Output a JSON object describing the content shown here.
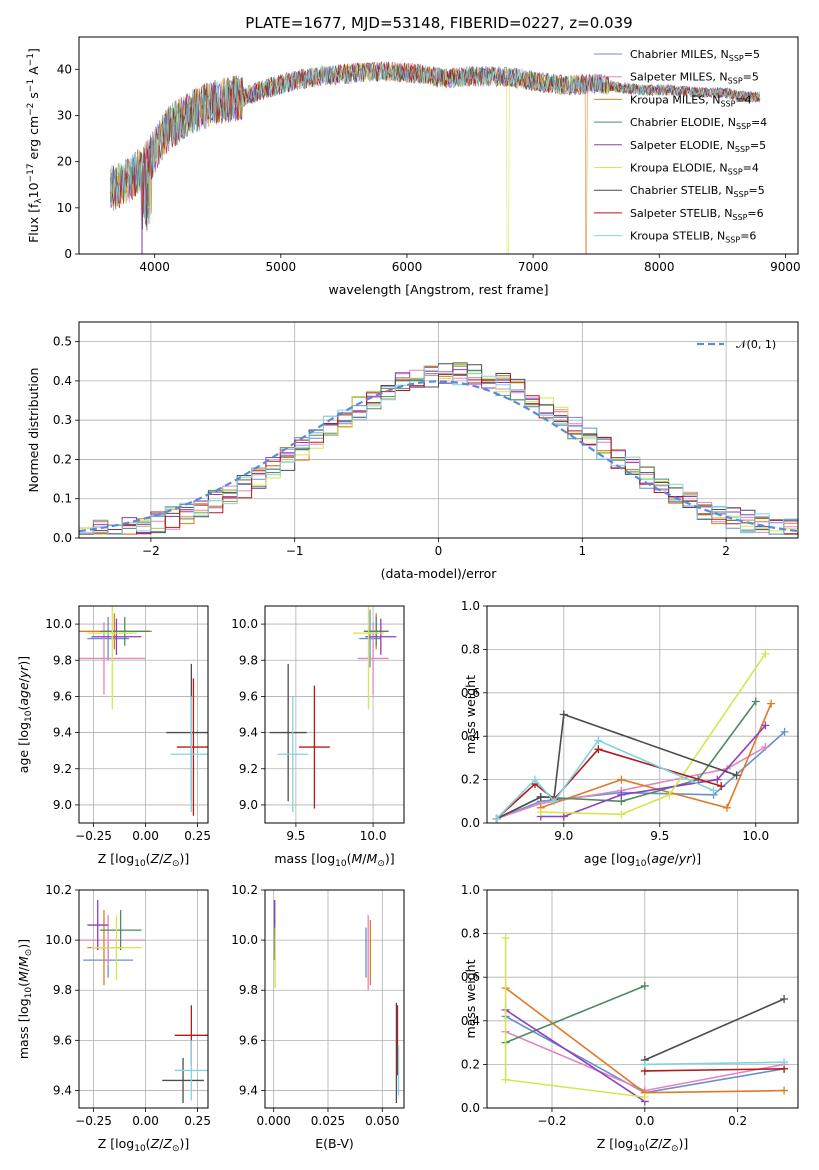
{
  "figure_title": "PLATE=1677, MJD=53148, FIBERID=0227, z=0.039",
  "models": [
    {
      "name": "Chabrier MILES",
      "nssp": 5,
      "color": "#6a8fd0"
    },
    {
      "name": "Salpeter MILES",
      "nssp": 5,
      "color": "#e386c0"
    },
    {
      "name": "Kroupa MILES",
      "nssp": 4,
      "color": "#e07b24"
    },
    {
      "name": "Chabrier ELODIE",
      "nssp": 4,
      "color": "#4f8a63"
    },
    {
      "name": "Salpeter ELODIE",
      "nssp": 5,
      "color": "#8e3fbf"
    },
    {
      "name": "Kroupa ELODIE",
      "nssp": 4,
      "color": "#d6e64e"
    },
    {
      "name": "Chabrier STELIB",
      "nssp": 5,
      "color": "#4c4c4c"
    },
    {
      "name": "Salpeter STELIB",
      "nssp": 6,
      "color": "#b31b1b"
    },
    {
      "name": "Kroupa STELIB",
      "nssp": 6,
      "color": "#7fd4e0"
    }
  ],
  "legend_nssp_label": "N",
  "legend_nssp_sub": "SSP",
  "normal_label": "𝒩(0, 1)",
  "chart_data": [
    {
      "id": "spectrum",
      "type": "line",
      "xlabel": "wavelength [Angstrom, rest frame]",
      "ylabel": "Flux [f",
      "ylabel_tail": "10",
      "xlim": [
        3400,
        9100
      ],
      "ylim": [
        0,
        47
      ],
      "xticks": [
        4000,
        5000,
        6000,
        7000,
        8000,
        9000
      ],
      "yticks": [
        0,
        10,
        20,
        30,
        40
      ],
      "legend": "top-right",
      "continuum": {
        "x": [
          3650,
          3800,
          3950,
          4100,
          4300,
          4500,
          4700,
          4900,
          5100,
          5300,
          5500,
          5700,
          5900,
          6100,
          6300,
          6500,
          6700,
          6900,
          7100,
          7300,
          7500,
          7700,
          7900,
          8100,
          8300,
          8500,
          8700,
          8800
        ],
        "y": [
          14,
          16,
          20,
          27,
          31,
          33,
          34,
          36,
          37.5,
          38.5,
          39,
          39.5,
          39.5,
          39,
          38,
          38.5,
          38.5,
          38,
          37,
          36.5,
          37,
          36,
          35.5,
          35.5,
          35,
          35,
          34,
          34
        ]
      },
      "dropouts": [
        {
          "model": "Salpeter ELODIE",
          "x": 3900
        },
        {
          "model": "Kroupa ELODIE",
          "x": 6800
        },
        {
          "model": "Kroupa MILES",
          "x": 7420
        }
      ]
    },
    {
      "id": "residuals",
      "type": "step",
      "xlabel": "(data-model)/error",
      "ylabel": "Normed distribution",
      "xlim": [
        -2.5,
        2.5
      ],
      "ylim": [
        0,
        0.55
      ],
      "xticks": [
        -2,
        -1,
        0,
        1,
        2
      ],
      "yticks": [
        0.0,
        0.1,
        0.2,
        0.3,
        0.4,
        0.5
      ],
      "grid": true,
      "legend": "top-right",
      "normal_curve": {
        "mean": 0,
        "sigma": 1
      }
    },
    {
      "id": "z-age",
      "type": "errorbar",
      "xlabel": "Z [log",
      "ylabel": "age  [log",
      "xlim": [
        -0.32,
        0.3
      ],
      "ylim": [
        8.9,
        10.1
      ],
      "xticks": [
        -0.25,
        0.0,
        0.25
      ],
      "yticks": [
        9.0,
        9.2,
        9.4,
        9.6,
        9.8,
        10.0
      ],
      "grid": true,
      "points": [
        {
          "model": "Chabrier MILES",
          "x": -0.18,
          "xerr": 0.1,
          "y": 9.92,
          "yerr": 0.12
        },
        {
          "model": "Salpeter MILES",
          "x": -0.2,
          "xerr": 0.2,
          "y": 9.81,
          "yerr": 0.2
        },
        {
          "model": "Kroupa MILES",
          "x": -0.15,
          "xerr": 0.18,
          "y": 9.96,
          "yerr": 0.1
        },
        {
          "model": "Chabrier ELODIE",
          "x": -0.1,
          "xerr": 0.12,
          "y": 9.96,
          "yerr": 0.08
        },
        {
          "model": "Salpeter ELODIE",
          "x": -0.14,
          "xerr": 0.12,
          "y": 9.93,
          "yerr": 0.1
        },
        {
          "model": "Kroupa ELODIE",
          "x": -0.16,
          "xerr": 0.12,
          "y": 9.95,
          "yerr": 0.42
        },
        {
          "model": "Chabrier STELIB",
          "x": 0.22,
          "xerr": 0.12,
          "y": 9.4,
          "yerr": 0.38
        },
        {
          "model": "Salpeter STELIB",
          "x": 0.23,
          "xerr": 0.08,
          "y": 9.32,
          "yerr": 0.38
        },
        {
          "model": "Kroupa STELIB",
          "x": 0.22,
          "xerr": 0.1,
          "y": 9.28,
          "yerr": 0.32
        }
      ]
    },
    {
      "id": "mass-age",
      "type": "errorbar",
      "xlabel": "mass [log",
      "ylabel": "",
      "xlim": [
        9.3,
        10.2
      ],
      "ylim": [
        8.9,
        10.1
      ],
      "xticks": [
        9.5,
        10.0
      ],
      "yticks": [
        9.0,
        9.2,
        9.4,
        9.6,
        9.8,
        10.0
      ],
      "grid": true,
      "points": [
        {
          "model": "Chabrier MILES",
          "x": 9.98,
          "xerr": 0.07,
          "y": 9.92,
          "yerr": 0.16
        },
        {
          "model": "Salpeter MILES",
          "x": 10.0,
          "xerr": 0.1,
          "y": 9.81,
          "yerr": 0.2
        },
        {
          "model": "Kroupa MILES",
          "x": 10.02,
          "xerr": 0.08,
          "y": 9.96,
          "yerr": 0.1
        },
        {
          "model": "Chabrier ELODIE",
          "x": 10.02,
          "xerr": 0.08,
          "y": 9.96,
          "yerr": 0.08
        },
        {
          "model": "Salpeter ELODIE",
          "x": 10.05,
          "xerr": 0.1,
          "y": 9.93,
          "yerr": 0.1
        },
        {
          "model": "Kroupa ELODIE",
          "x": 9.97,
          "xerr": 0.1,
          "y": 9.95,
          "yerr": 0.42
        },
        {
          "model": "Chabrier STELIB",
          "x": 9.45,
          "xerr": 0.12,
          "y": 9.4,
          "yerr": 0.38
        },
        {
          "model": "Salpeter STELIB",
          "x": 9.62,
          "xerr": 0.1,
          "y": 9.32,
          "yerr": 0.34
        },
        {
          "model": "Kroupa STELIB",
          "x": 9.48,
          "xerr": 0.1,
          "y": 9.28,
          "yerr": 0.32
        }
      ]
    },
    {
      "id": "age-weight",
      "type": "line",
      "xlabel": "age  [log",
      "ylabel": "mass weight",
      "xlim": [
        8.6,
        10.22
      ],
      "ylim": [
        0,
        1.0
      ],
      "xticks": [
        9.0,
        9.5,
        10.0
      ],
      "yticks": [
        0.0,
        0.2,
        0.4,
        0.6,
        0.8,
        1.0
      ],
      "grid": true,
      "series": [
        {
          "model": "Chabrier MILES",
          "x": [
            8.65,
            8.88,
            9.3,
            9.78,
            10.15
          ],
          "y": [
            0.02,
            0.1,
            0.14,
            0.13,
            0.42
          ]
        },
        {
          "model": "Salpeter MILES",
          "x": [
            8.65,
            8.88,
            9.3,
            9.85,
            10.05
          ],
          "y": [
            0.02,
            0.09,
            0.15,
            0.25,
            0.35
          ]
        },
        {
          "model": "Kroupa MILES",
          "x": [
            8.88,
            9.3,
            9.85,
            10.08
          ],
          "y": [
            0.07,
            0.2,
            0.07,
            0.55
          ]
        },
        {
          "model": "Chabrier ELODIE",
          "x": [
            8.65,
            8.88,
            9.3,
            9.7,
            10.0
          ],
          "y": [
            0.02,
            0.12,
            0.1,
            0.2,
            0.56
          ]
        },
        {
          "model": "Salpeter ELODIE",
          "x": [
            8.88,
            9.0,
            9.3,
            9.8,
            10.05
          ],
          "y": [
            0.03,
            0.03,
            0.13,
            0.2,
            0.45
          ]
        },
        {
          "model": "Kroupa ELODIE",
          "x": [
            8.88,
            9.3,
            9.55,
            10.05
          ],
          "y": [
            0.05,
            0.04,
            0.13,
            0.78
          ]
        },
        {
          "model": "Chabrier STELIB",
          "x": [
            8.65,
            8.88,
            8.95,
            9.0,
            9.9
          ],
          "y": [
            0.02,
            0.12,
            0.12,
            0.5,
            0.22
          ]
        },
        {
          "model": "Salpeter STELIB",
          "x": [
            8.65,
            8.85,
            8.95,
            9.18,
            9.82
          ],
          "y": [
            0.02,
            0.18,
            0.11,
            0.34,
            0.17
          ]
        },
        {
          "model": "Kroupa STELIB",
          "x": [
            8.65,
            8.85,
            8.95,
            9.18,
            9.78
          ],
          "y": [
            0.02,
            0.2,
            0.1,
            0.38,
            0.15
          ]
        }
      ]
    },
    {
      "id": "z-mass",
      "type": "errorbar",
      "xlabel": "Z [log",
      "ylabel": "mass [log",
      "xlim": [
        -0.32,
        0.3
      ],
      "ylim": [
        9.33,
        10.2
      ],
      "xticks": [
        -0.25,
        0.0,
        0.25
      ],
      "yticks": [
        9.4,
        9.6,
        9.8,
        10.0,
        10.2
      ],
      "grid": true,
      "points": [
        {
          "model": "Chabrier MILES",
          "x": -0.18,
          "xerr": 0.12,
          "y": 9.92,
          "yerr": 0.07
        },
        {
          "model": "Salpeter MILES",
          "x": -0.18,
          "xerr": 0.18,
          "y": 10.0,
          "yerr": 0.1
        },
        {
          "model": "Kroupa MILES",
          "x": -0.2,
          "xerr": 0.08,
          "y": 9.97,
          "yerr": 0.15
        },
        {
          "model": "Chabrier ELODIE",
          "x": -0.12,
          "xerr": 0.1,
          "y": 10.04,
          "yerr": 0.08
        },
        {
          "model": "Salpeter ELODIE",
          "x": -0.23,
          "xerr": 0.05,
          "y": 10.06,
          "yerr": 0.1
        },
        {
          "model": "Kroupa ELODIE",
          "x": -0.14,
          "xerr": 0.12,
          "y": 9.97,
          "yerr": 0.13
        },
        {
          "model": "Chabrier STELIB",
          "x": 0.18,
          "xerr": 0.1,
          "y": 9.44,
          "yerr": 0.09
        },
        {
          "model": "Salpeter STELIB",
          "x": 0.22,
          "xerr": 0.08,
          "y": 9.62,
          "yerr": 0.12
        },
        {
          "model": "Kroupa STELIB",
          "x": 0.22,
          "xerr": 0.08,
          "y": 9.48,
          "yerr": 0.12
        }
      ]
    },
    {
      "id": "ebv-mass",
      "type": "errorbar",
      "xlabel": "E(B-V)",
      "ylabel": "",
      "xlim": [
        -0.004,
        0.06
      ],
      "ylim": [
        9.33,
        10.2
      ],
      "xticks": [
        0.0,
        0.025,
        0.05
      ],
      "yticks": [
        9.4,
        9.6,
        9.8,
        10.0,
        10.2
      ],
      "grid": true,
      "points": [
        {
          "model": "Chabrier MILES",
          "x": 0.0425,
          "xerr": 0,
          "y": 9.95,
          "yerr": 0.1
        },
        {
          "model": "Salpeter MILES",
          "x": 0.0435,
          "xerr": 0,
          "y": 9.95,
          "yerr": 0.15
        },
        {
          "model": "Kroupa MILES",
          "x": 0.0445,
          "xerr": 0,
          "y": 9.95,
          "yerr": 0.13
        },
        {
          "model": "Chabrier ELODIE",
          "x": 0.0003,
          "xerr": 0,
          "y": 10.04,
          "yerr": 0.12
        },
        {
          "model": "Salpeter ELODIE",
          "x": 0.0005,
          "xerr": 0,
          "y": 10.06,
          "yerr": 0.1
        },
        {
          "model": "Kroupa ELODIE",
          "x": 0.0007,
          "xerr": 0,
          "y": 9.93,
          "yerr": 0.12
        },
        {
          "model": "Chabrier STELIB",
          "x": 0.0565,
          "xerr": 0,
          "y": 9.55,
          "yerr": 0.2
        },
        {
          "model": "Salpeter STELIB",
          "x": 0.057,
          "xerr": 0,
          "y": 9.6,
          "yerr": 0.14
        },
        {
          "model": "Kroupa STELIB",
          "x": 0.0575,
          "xerr": 0,
          "y": 9.48,
          "yerr": 0.1
        }
      ]
    },
    {
      "id": "z-weight",
      "type": "line",
      "xlabel": "Z [log",
      "ylabel": "mass weight",
      "xlim": [
        -0.34,
        0.33
      ],
      "ylim": [
        0,
        1.0
      ],
      "xticks": [
        -0.2,
        0.0,
        0.2
      ],
      "yticks": [
        0.0,
        0.2,
        0.4,
        0.6,
        0.8,
        1.0
      ],
      "grid": true,
      "series": [
        {
          "model": "Chabrier MILES",
          "x": [
            -0.3,
            0.0,
            0.3
          ],
          "y": [
            0.42,
            0.07,
            0.18
          ]
        },
        {
          "model": "Salpeter MILES",
          "x": [
            -0.3,
            0.0,
            0.3
          ],
          "y": [
            0.35,
            0.08,
            0.2
          ]
        },
        {
          "model": "Kroupa MILES",
          "x": [
            -0.3,
            0.0,
            0.3
          ],
          "y": [
            0.55,
            0.07,
            0.08
          ]
        },
        {
          "model": "Chabrier ELODIE",
          "x": [
            -0.3,
            0.0
          ],
          "y": [
            0.3,
            0.56
          ]
        },
        {
          "model": "Salpeter ELODIE",
          "x": [
            -0.3,
            0.0
          ],
          "y": [
            0.45,
            0.03
          ]
        },
        {
          "model": "Kroupa ELODIE",
          "x": [
            -0.3,
            -0.3,
            0.0
          ],
          "y": [
            0.78,
            0.13,
            0.05
          ]
        },
        {
          "model": "Chabrier STELIB",
          "x": [
            0.0,
            0.3
          ],
          "y": [
            0.22,
            0.5
          ]
        },
        {
          "model": "Salpeter STELIB",
          "x": [
            0.0,
            0.3
          ],
          "y": [
            0.17,
            0.18
          ]
        },
        {
          "model": "Kroupa STELIB",
          "x": [
            0.0,
            0.3
          ],
          "y": [
            0.2,
            0.21
          ]
        }
      ]
    }
  ]
}
